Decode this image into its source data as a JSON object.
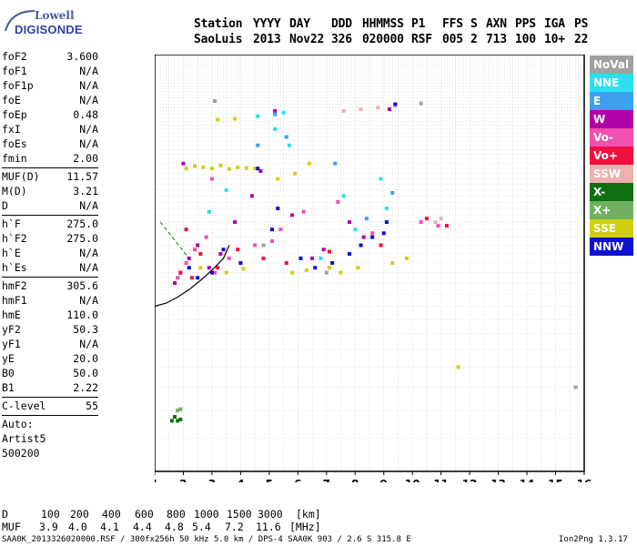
{
  "logo": {
    "line1": "Lowell",
    "line2": "DIGISONDE"
  },
  "header": {
    "labels": [
      "Station",
      "YYYY",
      "DAY",
      "DDD",
      "HHMMSS",
      "P1",
      "FFS",
      "S",
      "AXN",
      "PPS",
      "IGA",
      "PS"
    ],
    "values": [
      "SaoLuis",
      "2013",
      "Nov22",
      "326",
      "020000",
      "RSF",
      "005",
      "2",
      "713",
      "100",
      "10+",
      "22"
    ]
  },
  "params": {
    "group1": [
      {
        "name": "foF2",
        "value": "3.600"
      },
      {
        "name": "foF1",
        "value": "N/A"
      },
      {
        "name": "foF1p",
        "value": "N/A"
      },
      {
        "name": "foE",
        "value": "N/A"
      },
      {
        "name": "foEp",
        "value": "0.48"
      },
      {
        "name": "fxI",
        "value": "N/A"
      },
      {
        "name": "foEs",
        "value": "N/A"
      },
      {
        "name": "fmin",
        "value": "2.00"
      }
    ],
    "group2": [
      {
        "name": "MUF(D)",
        "value": "11.57"
      },
      {
        "name": "M(D)",
        "value": "3.21"
      },
      {
        "name": "D",
        "value": "N/A"
      }
    ],
    "group3": [
      {
        "name": "h`F",
        "value": "275.0"
      },
      {
        "name": "h`F2",
        "value": "275.0"
      },
      {
        "name": "h`E",
        "value": "N/A"
      },
      {
        "name": "h`Es",
        "value": "N/A"
      }
    ],
    "group4": [
      {
        "name": "hmF2",
        "value": "305.6"
      },
      {
        "name": "hmF1",
        "value": "N/A"
      },
      {
        "name": "hmE",
        "value": "110.0"
      },
      {
        "name": "yF2",
        "value": "50.3"
      },
      {
        "name": "yF1",
        "value": "N/A"
      },
      {
        "name": "yE",
        "value": "20.0"
      },
      {
        "name": "B0",
        "value": "50.0"
      },
      {
        "name": "B1",
        "value": "2.22"
      }
    ],
    "group5": [
      {
        "name": "C-level",
        "value": "55"
      }
    ],
    "auto": [
      "Auto:",
      "Artist5",
      "500200"
    ]
  },
  "legend": [
    {
      "label": "NoVal",
      "color": "#a0a0a0"
    },
    {
      "label": "NNE",
      "color": "#28e0f0"
    },
    {
      "label": "E",
      "color": "#3ca0f0"
    },
    {
      "label": "W",
      "color": "#b000a8"
    },
    {
      "label": "Vo-",
      "color": "#f050b0"
    },
    {
      "label": "Vo+",
      "color": "#f01040"
    },
    {
      "label": "SSW",
      "color": "#f0b0b0"
    },
    {
      "label": "X-",
      "color": "#107010"
    },
    {
      "label": "X+",
      "color": "#70b060"
    },
    {
      "label": "SSE",
      "color": "#d0d010"
    },
    {
      "label": "NNW",
      "color": "#1010d0"
    }
  ],
  "footer": {
    "d_label": "D",
    "d_values": [
      "100",
      "200",
      "400",
      "600",
      "800",
      "1000",
      "1500",
      "3000"
    ],
    "d_unit": "[km]",
    "muf_label": "MUF",
    "muf_values": [
      "3.9",
      "4.0",
      "4.1",
      "4.4",
      "4.8",
      "5.4",
      "7.2",
      "11.6"
    ],
    "muf_unit": "[MHz]",
    "file_info": "SAA0K_2013326020000.RSF / 300fx256h 50 kHz 5.0 km / DPS-4 SAA0K 903 / 2.6 S 315.8 E",
    "version": "Ion2Png 1.3.17"
  },
  "chart_data": {
    "type": "scatter",
    "title": "",
    "xlabel": "",
    "ylabel": "",
    "xlim": [
      1,
      16
    ],
    "ylim": [
      80,
      1280
    ],
    "x_ticks": [
      1,
      2,
      3,
      4,
      5,
      6,
      7,
      8,
      9,
      10,
      11,
      12,
      13,
      14,
      15,
      16
    ],
    "y_ticks": [
      80,
      200,
      300,
      400,
      500,
      600,
      700,
      800,
      900,
      1000,
      1100,
      1280
    ],
    "y_scale": "log",
    "grid": true,
    "legend_position": "right",
    "series": [
      {
        "mode": "W",
        "x": [
          1.7,
          1.9,
          2.2,
          2.5,
          2.9,
          3.3,
          3.8,
          4.4,
          5.2,
          5.8,
          6.5,
          7.8,
          8.3,
          9.2,
          9.4,
          2.0,
          4.7,
          6.9
        ],
        "y": [
          280,
          300,
          330,
          360,
          310,
          340,
          420,
          500,
          880,
          440,
          330,
          420,
          380,
          890,
          920,
          620,
          590,
          350
        ]
      },
      {
        "mode": "Vo-",
        "x": [
          1.8,
          2.1,
          2.4,
          2.8,
          3.1,
          3.6,
          4.5,
          5.4,
          6.2,
          7.4,
          8.6,
          10.3,
          10.9,
          3.0,
          5.1
        ],
        "y": [
          290,
          320,
          350,
          380,
          300,
          330,
          360,
          400,
          450,
          480,
          390,
          420,
          410,
          560,
          370
        ]
      },
      {
        "mode": "Vo+",
        "x": [
          1.9,
          2.3,
          2.6,
          3.2,
          3.9,
          4.8,
          5.6,
          7.1,
          8.9,
          10.5,
          11.2,
          2.1
        ],
        "y": [
          300,
          290,
          340,
          310,
          350,
          330,
          320,
          345,
          360,
          430,
          410,
          400
        ]
      },
      {
        "mode": "NNE",
        "x": [
          2.9,
          3.5,
          4.6,
          5.2,
          5.7,
          5.5,
          7.6,
          8.0,
          8.9,
          9.1,
          6.8
        ],
        "y": [
          450,
          520,
          850,
          780,
          700,
          870,
          500,
          400,
          560,
          460,
          330
        ]
      },
      {
        "mode": "E",
        "x": [
          4.6,
          5.2,
          5.6,
          7.3,
          8.4,
          9.3
        ],
        "y": [
          700,
          860,
          740,
          620,
          430,
          510
        ]
      },
      {
        "mode": "SSW",
        "x": [
          7.6,
          8.2,
          8.8,
          9.4,
          10.8,
          11.0
        ],
        "y": [
          880,
          890,
          900,
          910,
          420,
          430
        ]
      },
      {
        "mode": "SSE",
        "x": [
          2.1,
          2.4,
          2.7,
          3.0,
          3.3,
          3.6,
          3.9,
          4.2,
          4.5,
          3.2,
          3.8,
          5.3,
          5.9,
          6.3,
          7.1,
          7.5,
          8.1,
          9.3,
          9.8,
          11.6,
          2.6,
          3.5,
          4.1,
          5.8,
          6.4
        ],
        "y": [
          600,
          610,
          605,
          600,
          612,
          598,
          605,
          602,
          600,
          830,
          835,
          560,
          580,
          305,
          310,
          300,
          310,
          320,
          330,
          160,
          310,
          300,
          308,
          300,
          620
        ]
      },
      {
        "mode": "NNW",
        "x": [
          2.2,
          2.5,
          3.0,
          3.4,
          4.0,
          4.6,
          5.1,
          6.1,
          6.6,
          7.8,
          8.2,
          8.6,
          9.0,
          9.1,
          5.3,
          9.4,
          7.2
        ],
        "y": [
          310,
          290,
          300,
          350,
          320,
          600,
          400,
          330,
          310,
          340,
          360,
          380,
          390,
          420,
          460,
          920,
          320
        ]
      },
      {
        "mode": "X-",
        "x": [
          1.6,
          1.7,
          1.8,
          1.9
        ],
        "y": [
          112,
          115,
          112,
          113
        ]
      },
      {
        "mode": "X+",
        "x": [
          1.8,
          1.9
        ],
        "y": [
          120,
          121
        ]
      },
      {
        "mode": "NoVal",
        "x": [
          3.1,
          4.8,
          7.0,
          10.3,
          15.7
        ],
        "y": [
          940,
          360,
          300,
          925,
          140
        ]
      }
    ],
    "dashed_line": {
      "x": [
        1.2,
        2.2
      ],
      "y": [
        420,
        330
      ]
    },
    "trace": {
      "x": [
        1.0,
        1.4,
        1.8,
        2.2,
        2.6,
        3.0,
        3.4,
        3.6
      ],
      "y": [
        240,
        245,
        255,
        268,
        285,
        305,
        330,
        360
      ]
    }
  }
}
